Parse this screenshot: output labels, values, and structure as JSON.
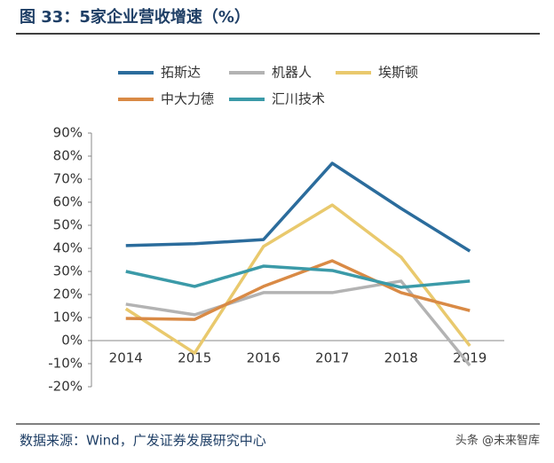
{
  "chart_data": {
    "type": "line",
    "title": "图 33：5家企业营收增速（%）",
    "source": "数据来源：Wind，广发证券发展研究中心",
    "watermark": "头条 @未来智库",
    "categories": [
      "2014",
      "2015",
      "2016",
      "2017",
      "2018",
      "2019"
    ],
    "series": [
      {
        "name": "拓斯达",
        "color": "#2b6c9c",
        "values": [
          41.2,
          42,
          43.8,
          76.9,
          57.3,
          38.8
        ]
      },
      {
        "name": "机器人",
        "color": "#b3b3b3",
        "values": [
          15.8,
          11.2,
          20.8,
          20.8,
          25.8,
          -10.8
        ]
      },
      {
        "name": "埃斯顿",
        "color": "#e9c96d",
        "values": [
          13.8,
          -5.4,
          40.8,
          58.8,
          36.2,
          -2.3
        ]
      },
      {
        "name": "中大力德",
        "color": "#d98a45",
        "values": [
          9.6,
          9.2,
          23.5,
          34.6,
          20.8,
          13
        ]
      },
      {
        "name": "汇川技术",
        "color": "#3b9aa8",
        "values": [
          30,
          23.5,
          32.3,
          30.4,
          23.1,
          25.8
        ]
      }
    ],
    "ylim": [
      -20,
      90
    ],
    "yticks": [
      {
        "value": 90,
        "label": "90%"
      },
      {
        "value": 80,
        "label": "80%"
      },
      {
        "value": 70,
        "label": "70%"
      },
      {
        "value": 60,
        "label": "60%"
      },
      {
        "value": 50,
        "label": "50%"
      },
      {
        "value": 40,
        "label": "40%"
      },
      {
        "value": 30,
        "label": "30%"
      },
      {
        "value": 20,
        "label": "20%"
      },
      {
        "value": 10,
        "label": "10%"
      },
      {
        "value": 0,
        "label": "0%"
      },
      {
        "value": -10,
        "label": "-10%"
      },
      {
        "value": -20,
        "label": "-20%"
      }
    ],
    "grid": false
  }
}
